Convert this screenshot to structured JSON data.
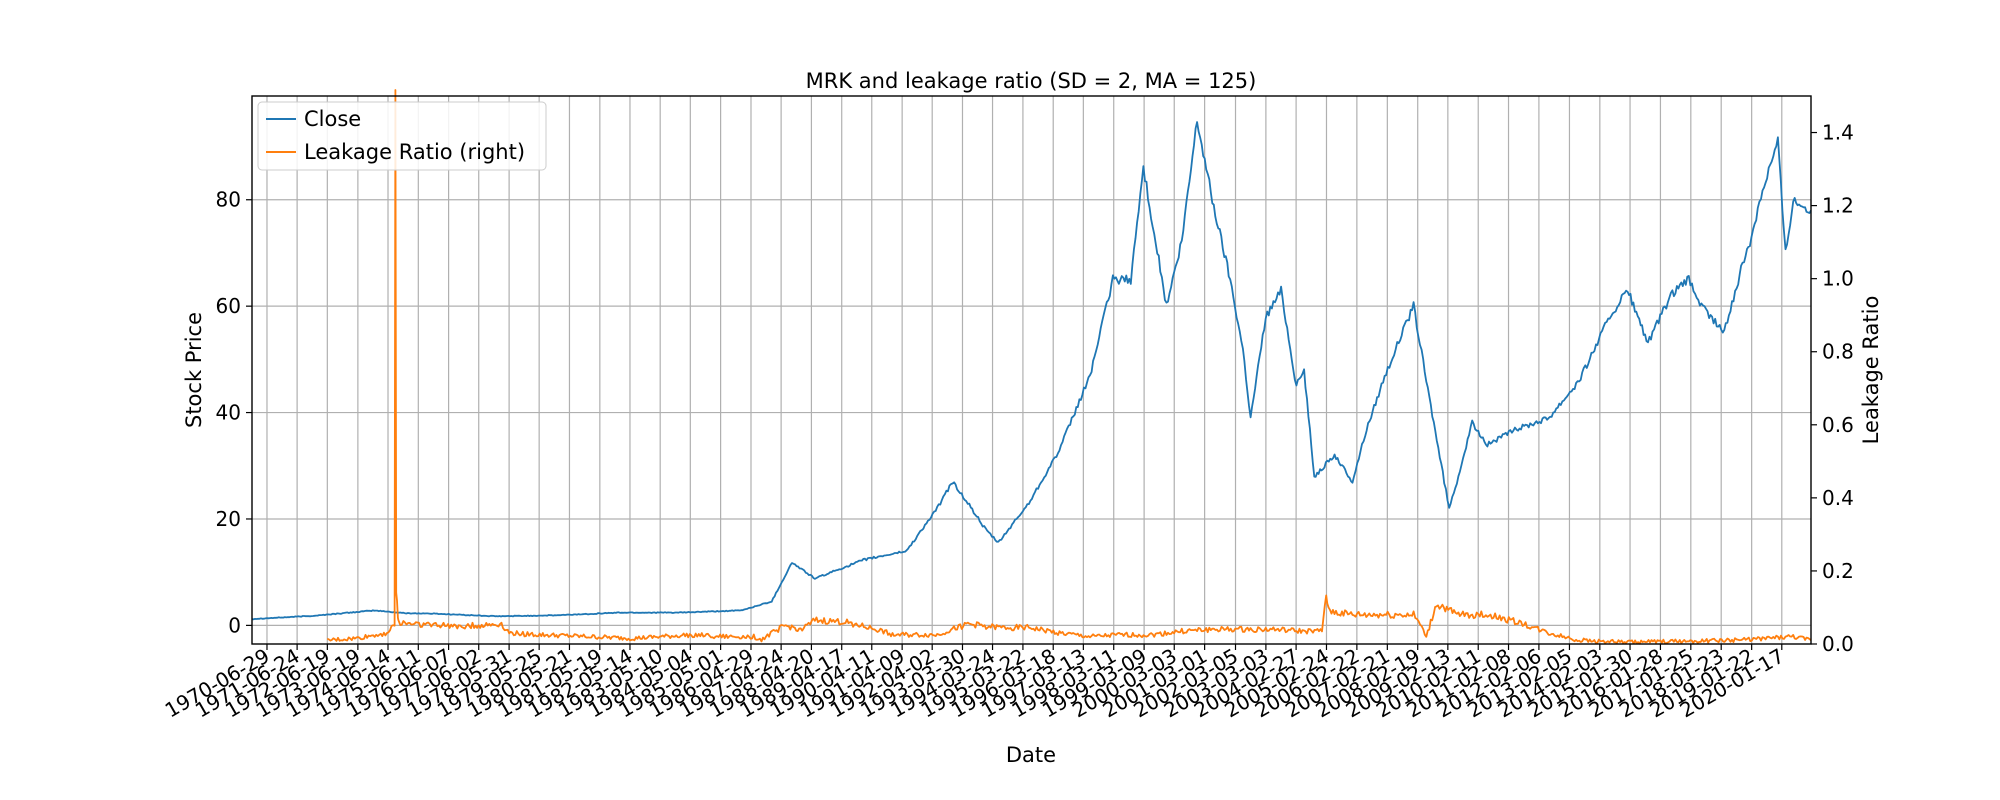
{
  "chart_data": {
    "type": "line",
    "title": "MRK and leakage ratio (SD = 2, MA = 125)",
    "xlabel": "Date",
    "ylabel_left": "Stock Price",
    "ylabel_right": "Leakage Ratio",
    "x_range": [
      "1970-01-01",
      "2020-12-31"
    ],
    "ylim_left": [
      -3.5,
      99.5
    ],
    "ylim_right": [
      0,
      1.5
    ],
    "yticks_left": [
      0,
      20,
      40,
      60,
      80
    ],
    "yticks_right": [
      "0.0",
      "0.2",
      "0.4",
      "0.6",
      "0.8",
      "1.0",
      "1.2",
      "1.4"
    ],
    "grid": true,
    "legend_position": "top-left",
    "xtick_labels": [
      "1970-06-29",
      "1971-06-24",
      "1972-06-19",
      "1973-06-19",
      "1974-06-14",
      "1975-06-11",
      "1976-06-07",
      "1977-06-02",
      "1978-05-31",
      "1979-05-25",
      "1980-05-21",
      "1981-05-19",
      "1982-05-14",
      "1983-05-10",
      "1984-05-04",
      "1985-05-01",
      "1986-04-29",
      "1987-04-24",
      "1988-04-20",
      "1989-04-17",
      "1990-04-11",
      "1991-04-09",
      "1992-04-02",
      "1993-03-30",
      "1994-03-24",
      "1995-03-22",
      "1996-03-18",
      "1997-03-13",
      "1998-03-11",
      "1999-03-09",
      "2000-03-03",
      "2001-03-01",
      "2002-03-05",
      "2003-03-03",
      "2004-02-27",
      "2005-02-24",
      "2006-02-22",
      "2007-02-21",
      "2008-02-19",
      "2009-02-13",
      "2010-02-11",
      "2011-02-08",
      "2012-02-06",
      "2013-02-05",
      "2014-02-03",
      "2015-01-30",
      "2016-01-28",
      "2017-01-25",
      "2018-01-23",
      "2019-01-22",
      "2020-01-17"
    ],
    "series": [
      {
        "name": "Close",
        "axis": "left",
        "color": "#1f77b4",
        "x": [
          "1970-01-01",
          "1972-01-01",
          "1974-01-01",
          "1975-01-01",
          "1976-01-01",
          "1978-01-01",
          "1980-01-01",
          "1982-01-01",
          "1984-01-01",
          "1986-01-01",
          "1987-01-01",
          "1987-09-01",
          "1988-06-01",
          "1990-01-01",
          "1991-06-01",
          "1992-06-01",
          "1992-12-01",
          "1993-06-01",
          "1994-01-01",
          "1994-06-01",
          "1995-06-01",
          "1996-06-01",
          "1997-06-01",
          "1998-03-01",
          "1998-10-01",
          "1999-03-01",
          "1999-12-01",
          "2000-06-01",
          "2000-12-01",
          "2001-06-01",
          "2002-01-01",
          "2002-06-01",
          "2002-09-01",
          "2003-03-01",
          "2003-09-01",
          "2004-03-01",
          "2004-06-01",
          "2004-10-01",
          "2005-06-01",
          "2006-01-01",
          "2006-06-01",
          "2007-01-01",
          "2007-06-01",
          "2008-01-01",
          "2008-06-01",
          "2009-01-01",
          "2009-03-01",
          "2009-06-01",
          "2009-12-01",
          "2010-06-01",
          "2011-06-01",
          "2012-06-01",
          "2013-06-01",
          "2014-06-01",
          "2015-01-01",
          "2015-09-01",
          "2016-06-01",
          "2017-01-01",
          "2017-06-01",
          "2018-03-01",
          "2018-09-01",
          "2019-01-01",
          "2019-06-01",
          "2019-12-01",
          "2020-03-01",
          "2020-06-01",
          "2020-12-31"
        ],
        "y": [
          1.2,
          1.8,
          2.8,
          2.3,
          2.2,
          1.7,
          1.9,
          2.4,
          2.4,
          2.8,
          4.5,
          11.8,
          8.8,
          12.3,
          14.0,
          22.0,
          27.0,
          23.0,
          18.0,
          15.5,
          23.0,
          33.0,
          47.0,
          65.0,
          65.0,
          86.0,
          60.0,
          72.0,
          95.0,
          80.0,
          65.0,
          52.0,
          39.0,
          58.0,
          63.0,
          45.0,
          48.0,
          28.0,
          32.0,
          27.0,
          36.0,
          46.0,
          52.0,
          60.0,
          46.0,
          27.0,
          22.0,
          27.0,
          38.0,
          34.0,
          37.0,
          39.0,
          46.0,
          58.0,
          63.0,
          53.0,
          62.0,
          65.0,
          60.0,
          55.0,
          66.0,
          72.0,
          82.0,
          91.0,
          70.0,
          80.0,
          78.0
        ]
      },
      {
        "name": "Leakage Ratio (right)",
        "axis": "right",
        "color": "#ff7f0e",
        "x": [
          "1972-06-19",
          "1973-06-01",
          "1974-06-01",
          "1974-09-01",
          "1974-09-10",
          "1974-09-20",
          "1974-10-10",
          "1974-10-20",
          "1975-06-01",
          "1976-06-01",
          "1977-06-01",
          "1978-03-01",
          "1978-06-01",
          "1979-06-01",
          "1981-01-01",
          "1982-06-01",
          "1984-06-01",
          "1985-06-01",
          "1986-06-01",
          "1986-09-01",
          "1987-06-01",
          "1988-01-01",
          "1988-06-01",
          "1989-06-01",
          "1990-06-01",
          "1991-01-01",
          "1992-06-01",
          "1993-06-01",
          "1994-06-01",
          "1995-06-01",
          "1996-06-01",
          "1997-06-01",
          "1998-06-01",
          "1999-06-01",
          "2000-06-01",
          "2001-06-01",
          "2002-06-01",
          "2003-06-01",
          "2004-06-01",
          "2005-01-01",
          "2005-02-20",
          "2005-03-20",
          "2006-01-01",
          "2007-01-01",
          "2008-01-01",
          "2008-03-01",
          "2008-06-01",
          "2008-10-01",
          "2009-06-01",
          "2010-06-01",
          "2011-06-01",
          "2012-06-01",
          "2013-06-01",
          "2015-01-01",
          "2016-06-01",
          "2018-06-01",
          "2019-06-01",
          "2020-06-01",
          "2020-12-31"
        ],
        "y": [
          0.01,
          0.015,
          0.03,
          0.05,
          1.55,
          0.15,
          0.07,
          0.06,
          0.055,
          0.05,
          0.05,
          0.055,
          0.03,
          0.025,
          0.02,
          0.015,
          0.025,
          0.02,
          0.02,
          0.012,
          0.05,
          0.04,
          0.065,
          0.06,
          0.04,
          0.025,
          0.025,
          0.055,
          0.045,
          0.045,
          0.03,
          0.02,
          0.025,
          0.025,
          0.035,
          0.04,
          0.04,
          0.04,
          0.035,
          0.035,
          0.14,
          0.09,
          0.08,
          0.08,
          0.08,
          0.06,
          0.02,
          0.11,
          0.08,
          0.08,
          0.06,
          0.03,
          0.01,
          0.005,
          0.007,
          0.01,
          0.015,
          0.02,
          0.01
        ]
      }
    ]
  }
}
